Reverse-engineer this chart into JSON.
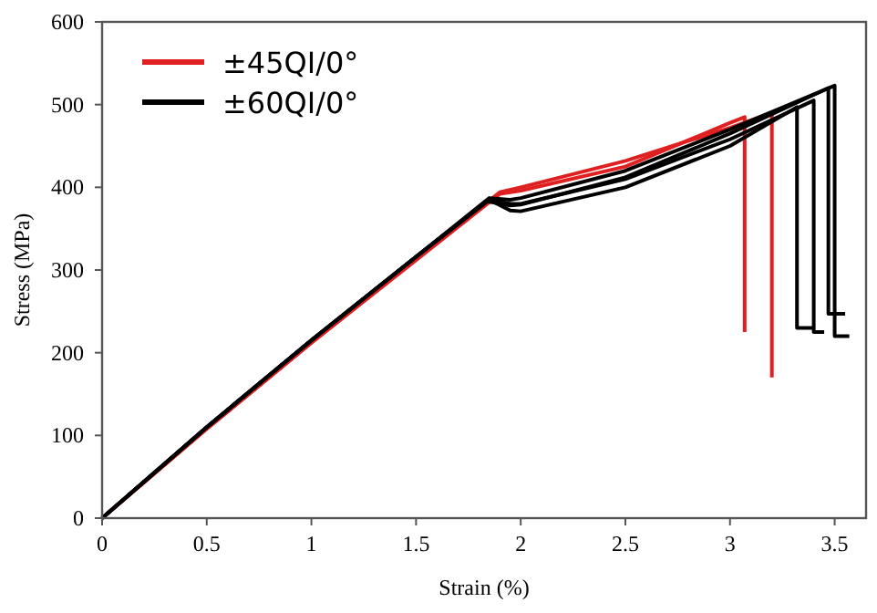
{
  "chart_data": {
    "type": "line",
    "xlabel": "Strain (%)",
    "ylabel": "Stress (MPa)",
    "xlim": [
      0,
      3.65
    ],
    "ylim": [
      0,
      600
    ],
    "xticks": [
      0,
      0.5,
      1,
      1.5,
      2,
      2.5,
      3,
      3.5
    ],
    "yticks": [
      0,
      100,
      200,
      300,
      400,
      500,
      600
    ],
    "grid": false,
    "legend": "top left",
    "line_style": "solid",
    "series": [
      {
        "name": "±45QI/0°",
        "color": "#e02020",
        "x": [
          0,
          0.5,
          1,
          1.5,
          1.8,
          1.9,
          2,
          2.5,
          3,
          3.07,
          3.07
        ],
        "values": [
          0,
          108,
          212,
          312,
          372,
          392,
          396,
          425,
          478,
          485,
          225
        ]
      },
      {
        "color": "#e02020",
        "x": [
          0,
          0.5,
          1,
          1.5,
          1.82,
          1.9,
          2,
          2.5,
          3,
          3.2,
          3.2
        ],
        "values": [
          0,
          108,
          212,
          313,
          378,
          394,
          400,
          432,
          472,
          490,
          170
        ]
      },
      {
        "name": "±60QI/0°",
        "color": "#000000",
        "x": [
          0,
          0.5,
          1,
          1.5,
          1.85,
          1.95,
          2,
          2.5,
          3,
          3.32,
          3.32,
          3.4
        ],
        "values": [
          0,
          110,
          215,
          316,
          385,
          372,
          371,
          400,
          450,
          497,
          230,
          230
        ]
      },
      {
        "color": "#000000",
        "x": [
          0,
          0.5,
          1,
          1.5,
          1.85,
          1.95,
          2,
          2.5,
          3,
          3.4,
          3.4,
          3.45
        ],
        "values": [
          0,
          110,
          215,
          316,
          386,
          380,
          380,
          410,
          458,
          505,
          225,
          225
        ]
      },
      {
        "color": "#000000",
        "x": [
          0,
          0.5,
          1,
          1.5,
          1.84,
          1.95,
          2,
          2.5,
          3,
          3.47,
          3.47,
          3.55
        ],
        "values": [
          0,
          110,
          215,
          316,
          383,
          378,
          379,
          412,
          465,
          520,
          247,
          247
        ]
      },
      {
        "color": "#000000",
        "x": [
          0,
          0.5,
          1,
          1.5,
          1.85,
          1.95,
          2,
          2.5,
          3,
          3.5,
          3.5,
          3.57
        ],
        "values": [
          0,
          110,
          215,
          316,
          387,
          385,
          387,
          420,
          470,
          523,
          220,
          220
        ]
      }
    ]
  }
}
